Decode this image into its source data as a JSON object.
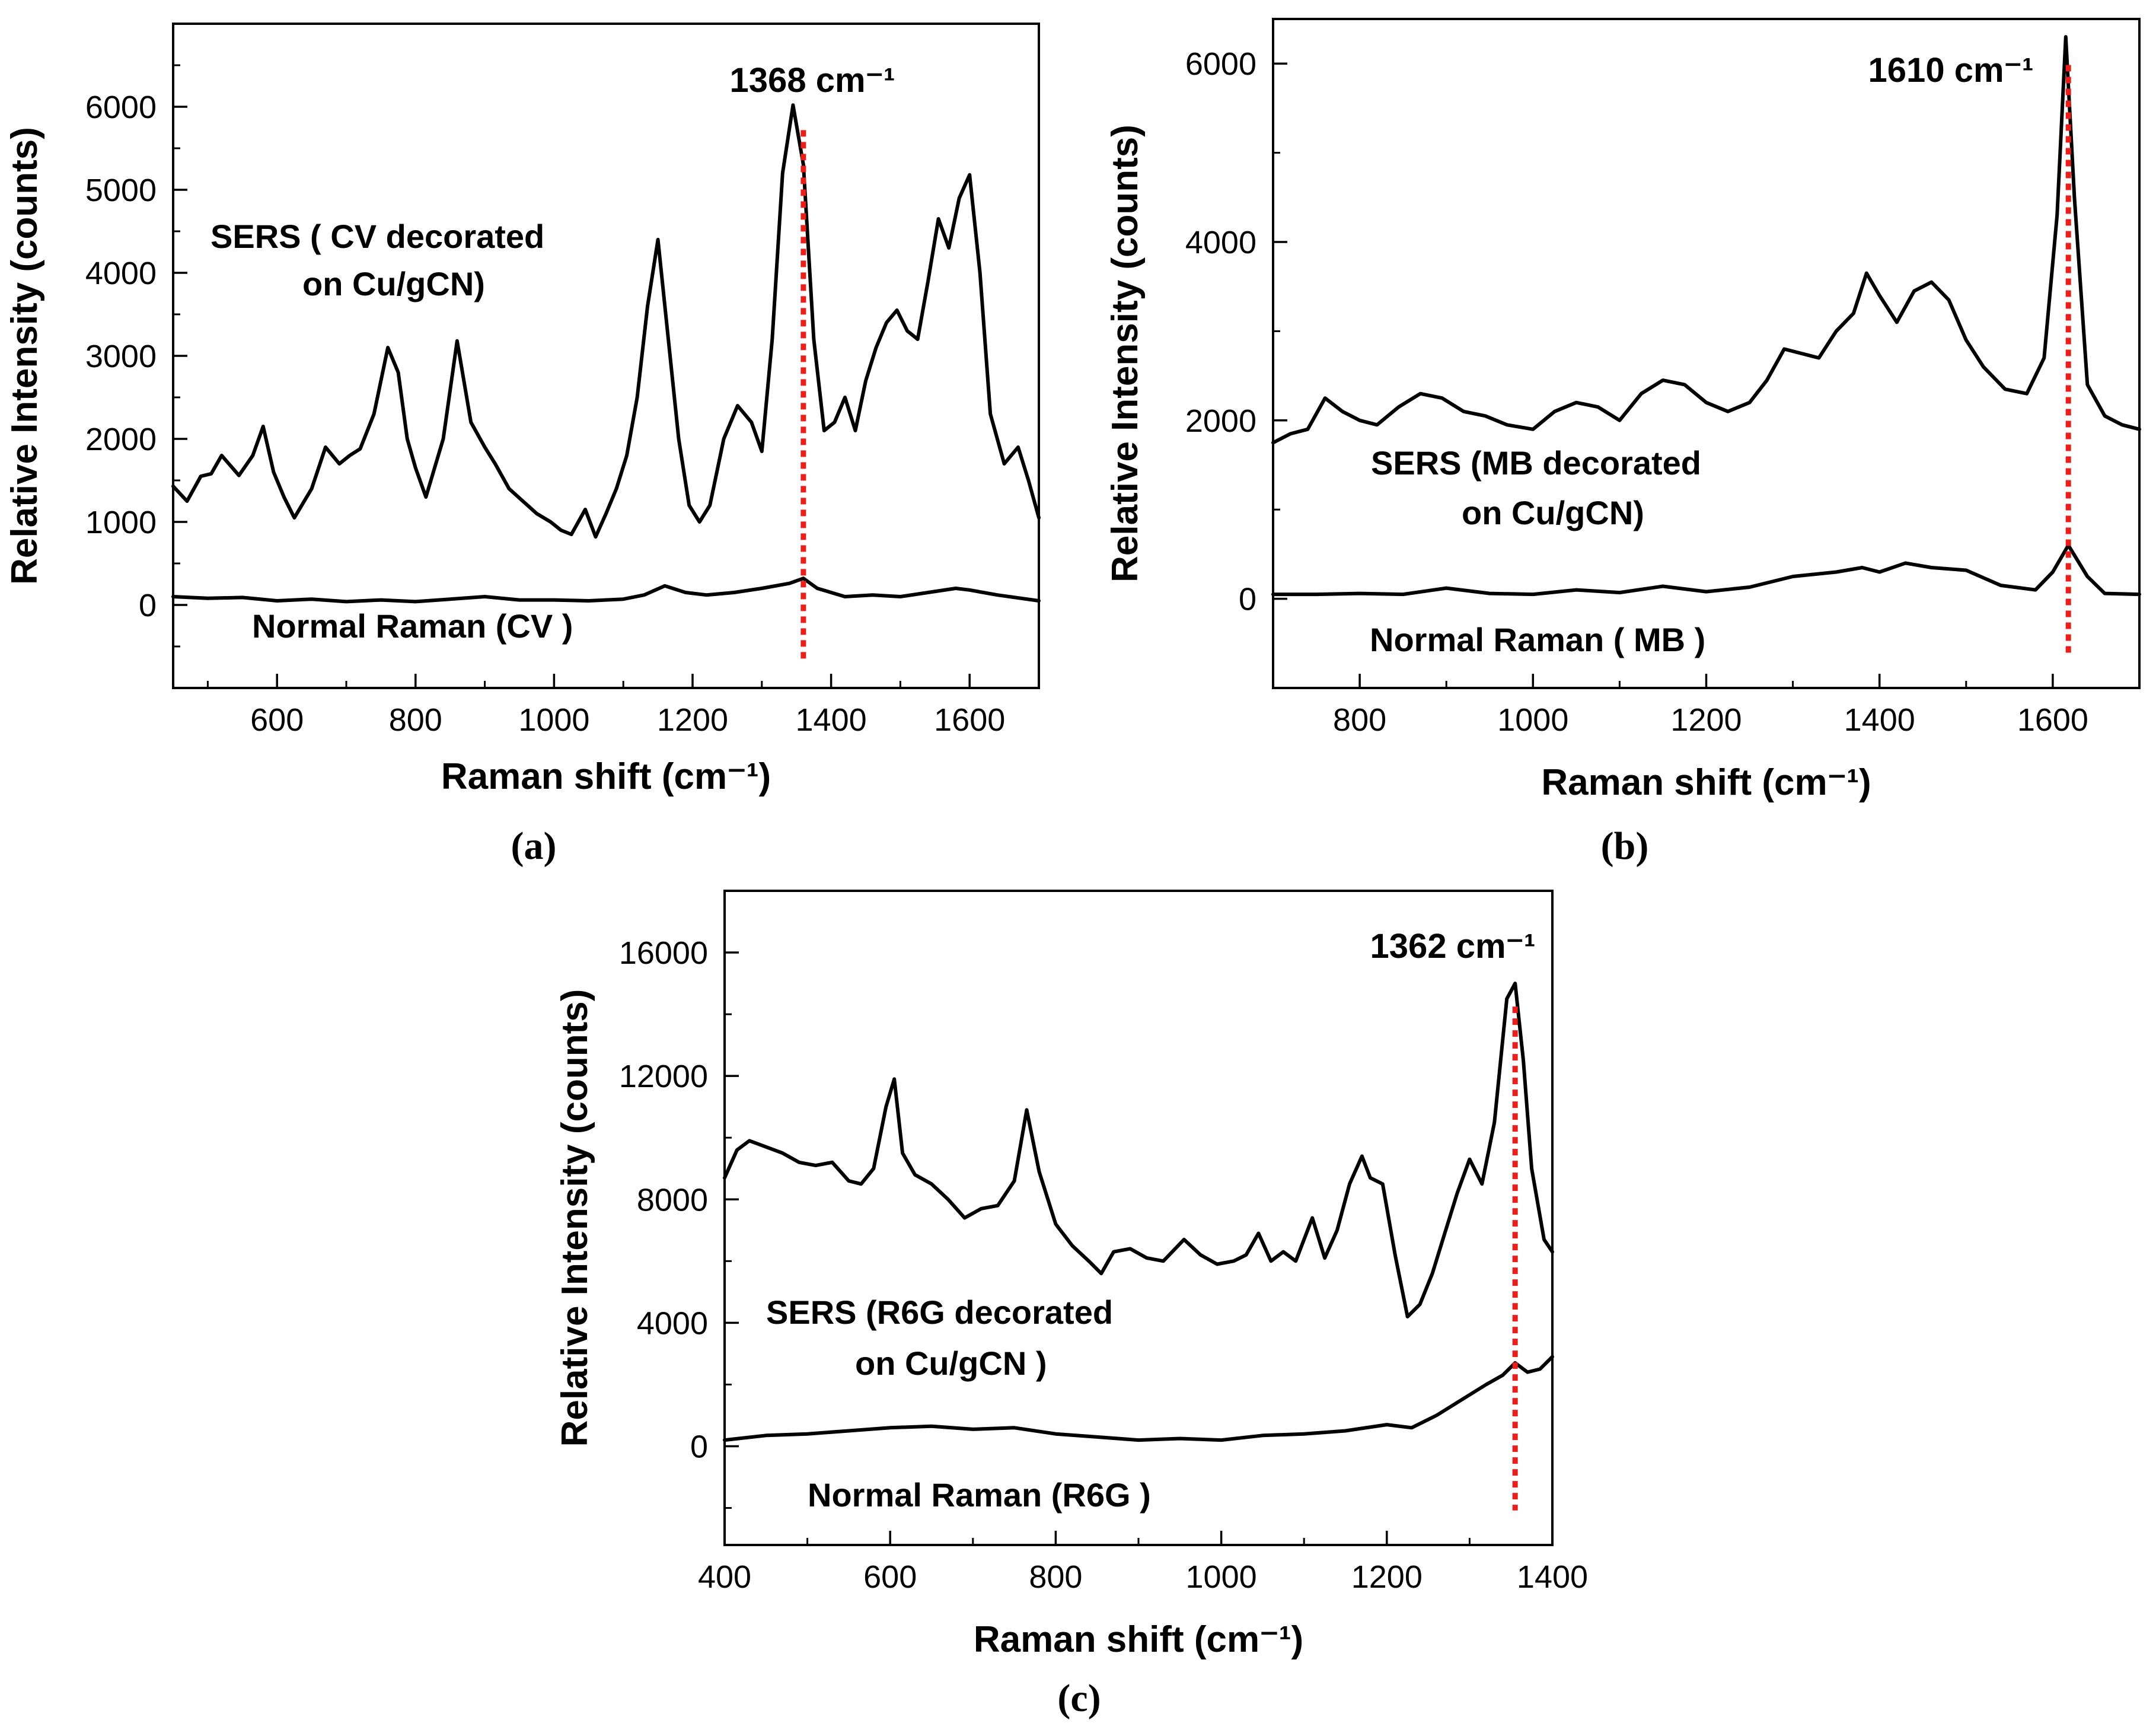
{
  "colors": {
    "line": "#000000",
    "marker": "#e8201c",
    "background": "#ffffff"
  },
  "chart_data": [
    {
      "type": "line",
      "panel": "(a)",
      "xlabel": "Raman shift (cm⁻¹)",
      "ylabel": "Relative Intensity (counts)",
      "xlim": [
        450,
        1700
      ],
      "ylim": [
        -1000,
        7000
      ],
      "x_ticks": [
        "600",
        "800",
        "1000",
        "1200",
        "1400",
        "1600"
      ],
      "y_ticks": [
        "0",
        "1000",
        "2000",
        "3000",
        "4000",
        "5000",
        "6000"
      ],
      "peak_label": "1368 cm⁻¹",
      "peak_x": 1360,
      "series": [
        {
          "name": "SERS ( CV decorated on Cu/gCN)",
          "label_lines": [
            "SERS ( CV decorated",
            "on Cu/gCN)"
          ],
          "x": [
            450,
            470,
            490,
            505,
            520,
            545,
            565,
            580,
            595,
            610,
            625,
            650,
            670,
            690,
            705,
            720,
            740,
            760,
            775,
            788,
            800,
            815,
            840,
            860,
            880,
            900,
            915,
            935,
            955,
            975,
            995,
            1010,
            1025,
            1045,
            1060,
            1075,
            1090,
            1105,
            1120,
            1135,
            1150,
            1165,
            1180,
            1195,
            1210,
            1225,
            1245,
            1265,
            1285,
            1300,
            1315,
            1330,
            1345,
            1360,
            1375,
            1390,
            1405,
            1420,
            1435,
            1450,
            1465,
            1480,
            1495,
            1510,
            1525,
            1540,
            1555,
            1570,
            1585,
            1600,
            1615,
            1630,
            1650,
            1670,
            1685,
            1700
          ],
          "y": [
            1430,
            1250,
            1550,
            1580,
            1800,
            1560,
            1800,
            2150,
            1600,
            1300,
            1050,
            1400,
            1900,
            1700,
            1800,
            1880,
            2300,
            3100,
            2800,
            2000,
            1650,
            1300,
            2000,
            3180,
            2200,
            1900,
            1700,
            1400,
            1250,
            1100,
            1000,
            900,
            850,
            1150,
            820,
            1100,
            1400,
            1800,
            2500,
            3600,
            4400,
            3200,
            2000,
            1200,
            1000,
            1200,
            2000,
            2400,
            2200,
            1850,
            3200,
            5200,
            6020,
            5300,
            3200,
            2100,
            2200,
            2500,
            2100,
            2700,
            3100,
            3400,
            3550,
            3300,
            3200,
            3900,
            4650,
            4300,
            4900,
            5180,
            4000,
            2300,
            1700,
            1900,
            1500,
            1050
          ]
        },
        {
          "name": "Normal Raman (CV )",
          "label_lines": [
            "Normal Raman (CV )"
          ],
          "x": [
            450,
            500,
            550,
            600,
            650,
            700,
            750,
            800,
            850,
            900,
            950,
            1000,
            1050,
            1100,
            1130,
            1160,
            1190,
            1220,
            1260,
            1300,
            1340,
            1360,
            1380,
            1420,
            1460,
            1500,
            1540,
            1580,
            1600,
            1640,
            1700
          ],
          "y": [
            100,
            80,
            90,
            50,
            70,
            40,
            60,
            40,
            70,
            100,
            60,
            60,
            50,
            70,
            120,
            230,
            150,
            120,
            150,
            200,
            260,
            320,
            200,
            100,
            120,
            100,
            150,
            200,
            180,
            120,
            50
          ]
        }
      ]
    },
    {
      "type": "line",
      "panel": "(b)",
      "xlabel": "Raman shift (cm⁻¹)",
      "ylabel": "Relative Intensity (counts)",
      "xlim": [
        700,
        1700
      ],
      "ylim": [
        -1000,
        6500
      ],
      "x_ticks": [
        "800",
        "1000",
        "1200",
        "1400",
        "1600"
      ],
      "y_ticks": [
        "0",
        "2000",
        "4000",
        "6000"
      ],
      "peak_label": "1610 cm⁻¹",
      "peak_x": 1618,
      "series": [
        {
          "name": "SERS (MB decorated on Cu/gCN)",
          "label_lines": [
            "SERS (MB decorated",
            "on Cu/gCN)"
          ],
          "x": [
            700,
            720,
            740,
            760,
            780,
            800,
            820,
            845,
            870,
            895,
            920,
            945,
            970,
            1000,
            1025,
            1050,
            1075,
            1100,
            1125,
            1150,
            1175,
            1200,
            1225,
            1250,
            1270,
            1290,
            1310,
            1330,
            1350,
            1370,
            1385,
            1400,
            1420,
            1440,
            1460,
            1480,
            1500,
            1520,
            1545,
            1570,
            1590,
            1605,
            1615,
            1625,
            1640,
            1660,
            1680,
            1700
          ],
          "y": [
            1750,
            1850,
            1900,
            2250,
            2100,
            2000,
            1950,
            2150,
            2300,
            2250,
            2100,
            2050,
            1950,
            1900,
            2100,
            2200,
            2150,
            2000,
            2300,
            2450,
            2400,
            2200,
            2100,
            2200,
            2450,
            2800,
            2750,
            2700,
            3000,
            3200,
            3650,
            3400,
            3100,
            3450,
            3550,
            3350,
            2900,
            2600,
            2350,
            2300,
            2700,
            4300,
            6300,
            4500,
            2400,
            2050,
            1950,
            1900
          ]
        },
        {
          "name": "Normal Raman ( MB )",
          "label_lines": [
            "Normal Raman ( MB )"
          ],
          "x": [
            700,
            750,
            800,
            850,
            900,
            950,
            1000,
            1050,
            1100,
            1150,
            1200,
            1250,
            1300,
            1350,
            1380,
            1400,
            1430,
            1460,
            1500,
            1540,
            1580,
            1600,
            1618,
            1640,
            1660,
            1700
          ],
          "y": [
            50,
            50,
            60,
            50,
            120,
            60,
            50,
            100,
            70,
            140,
            80,
            130,
            250,
            300,
            350,
            300,
            400,
            350,
            320,
            150,
            100,
            300,
            600,
            250,
            60,
            50
          ]
        }
      ]
    },
    {
      "type": "line",
      "panel": "(c)",
      "xlabel": "Raman shift (cm⁻¹)",
      "ylabel": "Relative Intensity (counts)",
      "xlim": [
        400,
        1400
      ],
      "ylim": [
        -3200,
        18000
      ],
      "x_ticks": [
        "400",
        "600",
        "800",
        "1000",
        "1200",
        "1400"
      ],
      "y_ticks": [
        "0",
        "4000",
        "8000",
        "12000",
        "16000"
      ],
      "peak_label": "1362 cm⁻¹",
      "peak_x": 1355,
      "series": [
        {
          "name": "SERS (R6G decorated on Cu/gCN )",
          "label_lines": [
            "SERS (R6G decorated",
            "on Cu/gCN )"
          ],
          "x": [
            400,
            415,
            430,
            450,
            470,
            490,
            510,
            530,
            550,
            565,
            580,
            595,
            605,
            615,
            630,
            650,
            670,
            690,
            710,
            730,
            750,
            765,
            780,
            800,
            820,
            840,
            855,
            870,
            890,
            910,
            930,
            955,
            975,
            995,
            1015,
            1030,
            1045,
            1060,
            1075,
            1090,
            1110,
            1125,
            1140,
            1155,
            1170,
            1180,
            1195,
            1210,
            1225,
            1240,
            1255,
            1270,
            1285,
            1300,
            1315,
            1330,
            1345,
            1355,
            1365,
            1375,
            1390,
            1400
          ],
          "y": [
            8700,
            9600,
            9900,
            9700,
            9500,
            9200,
            9100,
            9200,
            8600,
            8500,
            9000,
            11000,
            11900,
            9500,
            8800,
            8500,
            8000,
            7400,
            7700,
            7800,
            8600,
            10900,
            8900,
            7200,
            6500,
            6000,
            5600,
            6300,
            6400,
            6100,
            6000,
            6700,
            6200,
            5900,
            6000,
            6200,
            6900,
            6000,
            6300,
            6000,
            7400,
            6100,
            7000,
            8500,
            9400,
            8700,
            8500,
            6200,
            4200,
            4600,
            5600,
            6900,
            8200,
            9300,
            8500,
            10500,
            14500,
            15000,
            12500,
            9000,
            6700,
            6300
          ]
        },
        {
          "name": "Normal Raman (R6G )",
          "label_lines": [
            "Normal Raman (R6G )"
          ],
          "x": [
            400,
            450,
            500,
            550,
            600,
            650,
            700,
            750,
            800,
            850,
            900,
            950,
            1000,
            1050,
            1100,
            1150,
            1200,
            1230,
            1260,
            1290,
            1320,
            1340,
            1355,
            1370,
            1385,
            1400
          ],
          "y": [
            200,
            350,
            400,
            500,
            600,
            650,
            550,
            600,
            400,
            300,
            200,
            250,
            200,
            350,
            400,
            500,
            700,
            600,
            1000,
            1500,
            2000,
            2300,
            2700,
            2400,
            2500,
            2900
          ]
        }
      ]
    }
  ]
}
